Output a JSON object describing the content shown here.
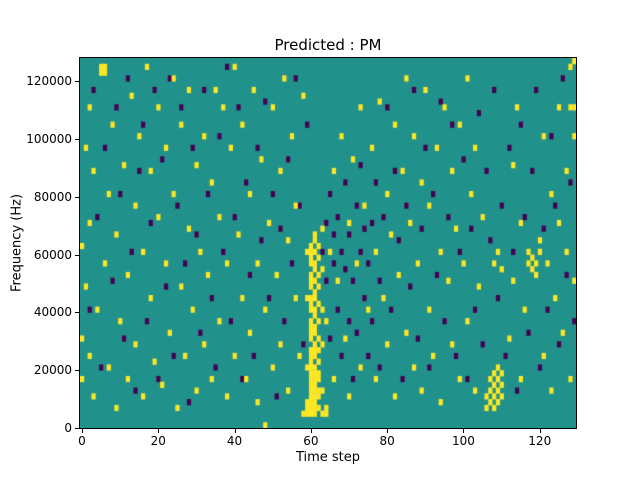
{
  "figure": {
    "title": "Predicted : PM"
  },
  "chart_data": {
    "type": "heatmap",
    "title": "Predicted : PM",
    "xlabel": "Time step",
    "ylabel": "Frequency (Hz)",
    "xlim": [
      0,
      130
    ],
    "ylim": [
      0,
      128000
    ],
    "n_time_steps": 130,
    "n_freq_bins": 64,
    "freq_bin_hz": 2000,
    "xticks": [
      0,
      20,
      40,
      60,
      80,
      100,
      120
    ],
    "xticklabels": [
      "0",
      "20",
      "40",
      "60",
      "80",
      "100",
      "120"
    ],
    "yticks": [
      0,
      20000,
      40000,
      60000,
      80000,
      100000,
      120000
    ],
    "yticklabels": [
      "0",
      "20000",
      "40000",
      "60000",
      "80000",
      "100000",
      "120000"
    ],
    "colormap": "viridis",
    "legend": "none",
    "grid": false,
    "colors": {
      "class_mid_teal": "#21918c",
      "class_yellow": "#fde725",
      "class_purple": "#440154",
      "axis": "#000000",
      "figure_bg": "#ffffff"
    },
    "cells_yellow": [
      [
        0,
        8
      ],
      [
        0,
        15
      ],
      [
        0,
        31
      ],
      [
        1,
        24
      ],
      [
        1,
        48
      ],
      [
        2,
        12
      ],
      [
        2,
        35
      ],
      [
        2,
        55
      ],
      [
        3,
        5
      ],
      [
        3,
        44
      ],
      [
        4,
        20
      ],
      [
        5,
        61
      ],
      [
        5,
        62
      ],
      [
        6,
        61
      ],
      [
        6,
        62
      ],
      [
        6,
        28
      ],
      [
        7,
        10
      ],
      [
        7,
        40
      ],
      [
        8,
        52
      ],
      [
        9,
        3
      ],
      [
        9,
        33
      ],
      [
        10,
        18
      ],
      [
        11,
        45
      ],
      [
        12,
        8
      ],
      [
        12,
        26
      ],
      [
        13,
        57
      ],
      [
        14,
        14
      ],
      [
        14,
        38
      ],
      [
        15,
        50
      ],
      [
        16,
        5
      ],
      [
        16,
        30
      ],
      [
        17,
        62
      ],
      [
        18,
        22
      ],
      [
        18,
        44
      ],
      [
        19,
        11
      ],
      [
        20,
        36
      ],
      [
        20,
        55
      ],
      [
        21,
        7
      ],
      [
        22,
        28
      ],
      [
        22,
        48
      ],
      [
        23,
        16
      ],
      [
        24,
        40
      ],
      [
        24,
        60
      ],
      [
        25,
        3
      ],
      [
        26,
        24
      ],
      [
        26,
        52
      ],
      [
        27,
        12
      ],
      [
        28,
        34
      ],
      [
        28,
        58
      ],
      [
        29,
        20
      ],
      [
        30,
        45
      ],
      [
        30,
        6
      ],
      [
        31,
        30
      ],
      [
        32,
        14
      ],
      [
        32,
        50
      ],
      [
        33,
        26
      ],
      [
        34,
        8
      ],
      [
        34,
        42
      ],
      [
        35,
        58
      ],
      [
        36,
        18
      ],
      [
        36,
        36
      ],
      [
        37,
        55
      ],
      [
        38,
        5
      ],
      [
        38,
        28
      ],
      [
        39,
        48
      ],
      [
        40,
        12
      ],
      [
        40,
        62
      ],
      [
        41,
        33
      ],
      [
        42,
        22
      ],
      [
        42,
        52
      ],
      [
        43,
        8
      ],
      [
        44,
        40
      ],
      [
        44,
        16
      ],
      [
        45,
        58
      ],
      [
        46,
        28
      ],
      [
        46,
        4
      ],
      [
        47,
        46
      ],
      [
        48,
        0
      ],
      [
        48,
        20
      ],
      [
        49,
        35
      ],
      [
        50,
        55
      ],
      [
        50,
        10
      ],
      [
        51,
        26
      ],
      [
        52,
        44
      ],
      [
        52,
        14
      ],
      [
        53,
        60
      ],
      [
        54,
        32
      ],
      [
        54,
        6
      ],
      [
        55,
        50
      ],
      [
        56,
        22
      ],
      [
        56,
        38
      ],
      [
        57,
        12
      ],
      [
        58,
        57
      ],
      [
        58,
        2
      ],
      [
        59,
        2
      ],
      [
        59,
        3
      ],
      [
        59,
        4
      ],
      [
        59,
        10
      ],
      [
        59,
        22
      ],
      [
        59,
        30
      ],
      [
        60,
        2
      ],
      [
        60,
        3
      ],
      [
        60,
        4
      ],
      [
        60,
        5
      ],
      [
        60,
        6
      ],
      [
        60,
        7
      ],
      [
        60,
        8
      ],
      [
        60,
        9
      ],
      [
        60,
        10
      ],
      [
        60,
        11
      ],
      [
        60,
        12
      ],
      [
        60,
        13
      ],
      [
        60,
        15
      ],
      [
        60,
        16
      ],
      [
        60,
        17
      ],
      [
        60,
        18
      ],
      [
        60,
        20
      ],
      [
        60,
        21
      ],
      [
        60,
        22
      ],
      [
        60,
        24
      ],
      [
        60,
        25
      ],
      [
        60,
        26
      ],
      [
        60,
        28
      ],
      [
        60,
        29
      ],
      [
        60,
        30
      ],
      [
        60,
        31
      ],
      [
        61,
        2
      ],
      [
        61,
        3
      ],
      [
        61,
        4
      ],
      [
        61,
        5
      ],
      [
        61,
        6
      ],
      [
        61,
        7
      ],
      [
        61,
        8
      ],
      [
        61,
        9
      ],
      [
        61,
        10
      ],
      [
        61,
        12
      ],
      [
        61,
        13
      ],
      [
        61,
        14
      ],
      [
        61,
        16
      ],
      [
        61,
        17
      ],
      [
        61,
        19
      ],
      [
        61,
        20
      ],
      [
        61,
        22
      ],
      [
        61,
        23
      ],
      [
        61,
        25
      ],
      [
        61,
        27
      ],
      [
        61,
        28
      ],
      [
        61,
        30
      ],
      [
        61,
        32
      ],
      [
        61,
        33
      ],
      [
        62,
        3
      ],
      [
        62,
        5
      ],
      [
        62,
        6
      ],
      [
        62,
        8
      ],
      [
        62,
        9
      ],
      [
        62,
        11
      ],
      [
        62,
        13
      ],
      [
        62,
        15
      ],
      [
        62,
        18
      ],
      [
        62,
        21
      ],
      [
        62,
        24
      ],
      [
        62,
        26
      ],
      [
        62,
        29
      ],
      [
        62,
        31
      ],
      [
        63,
        2
      ],
      [
        63,
        6
      ],
      [
        63,
        14
      ],
      [
        63,
        20
      ],
      [
        63,
        27
      ],
      [
        63,
        34
      ],
      [
        64,
        2
      ],
      [
        64,
        3
      ],
      [
        64,
        18
      ],
      [
        65,
        30
      ],
      [
        66,
        8
      ],
      [
        66,
        44
      ],
      [
        67,
        25
      ],
      [
        68,
        50
      ],
      [
        69,
        15
      ],
      [
        70,
        35
      ],
      [
        70,
        5
      ],
      [
        71,
        46
      ],
      [
        72,
        28
      ],
      [
        73,
        10
      ],
      [
        73,
        55
      ],
      [
        74,
        38
      ],
      [
        75,
        20
      ],
      [
        76,
        48
      ],
      [
        77,
        30
      ],
      [
        77,
        8
      ],
      [
        78,
        56
      ],
      [
        79,
        22
      ],
      [
        80,
        40
      ],
      [
        80,
        14
      ],
      [
        81,
        33
      ],
      [
        82,
        5
      ],
      [
        82,
        52
      ],
      [
        83,
        26
      ],
      [
        84,
        44
      ],
      [
        85,
        16
      ],
      [
        85,
        60
      ],
      [
        86,
        35
      ],
      [
        87,
        10
      ],
      [
        87,
        50
      ],
      [
        88,
        28
      ],
      [
        89,
        6
      ],
      [
        89,
        42
      ],
      [
        90,
        58
      ],
      [
        91,
        20
      ],
      [
        91,
        38
      ],
      [
        92,
        12
      ],
      [
        93,
        48
      ],
      [
        94,
        30
      ],
      [
        94,
        4
      ],
      [
        95,
        55
      ],
      [
        96,
        25
      ],
      [
        97,
        44
      ],
      [
        97,
        14
      ],
      [
        98,
        34
      ],
      [
        99,
        8
      ],
      [
        99,
        52
      ],
      [
        100,
        28
      ],
      [
        101,
        60
      ],
      [
        101,
        18
      ],
      [
        102,
        40
      ],
      [
        103,
        6
      ],
      [
        103,
        48
      ],
      [
        104,
        24
      ],
      [
        105,
        36
      ],
      [
        106,
        3
      ],
      [
        106,
        5
      ],
      [
        107,
        4
      ],
      [
        107,
        6
      ],
      [
        107,
        8
      ],
      [
        108,
        3
      ],
      [
        108,
        5
      ],
      [
        108,
        7
      ],
      [
        108,
        9
      ],
      [
        109,
        4
      ],
      [
        109,
        6
      ],
      [
        109,
        8
      ],
      [
        109,
        10
      ],
      [
        110,
        5
      ],
      [
        110,
        7
      ],
      [
        110,
        9
      ],
      [
        108,
        28
      ],
      [
        109,
        30
      ],
      [
        110,
        27
      ],
      [
        112,
        15
      ],
      [
        113,
        45
      ],
      [
        113,
        25
      ],
      [
        114,
        55
      ],
      [
        115,
        8
      ],
      [
        115,
        35
      ],
      [
        116,
        20
      ],
      [
        117,
        28
      ],
      [
        117,
        30
      ],
      [
        118,
        27
      ],
      [
        118,
        29
      ],
      [
        119,
        26
      ],
      [
        119,
        28
      ],
      [
        120,
        30
      ],
      [
        120,
        32
      ],
      [
        121,
        12
      ],
      [
        121,
        50
      ],
      [
        122,
        28
      ],
      [
        123,
        40
      ],
      [
        123,
        6
      ],
      [
        124,
        22
      ],
      [
        125,
        55
      ],
      [
        125,
        35
      ],
      [
        126,
        16
      ],
      [
        127,
        44
      ],
      [
        127,
        30
      ],
      [
        128,
        62
      ],
      [
        128,
        8
      ],
      [
        128,
        55
      ],
      [
        129,
        63
      ],
      [
        129,
        55
      ],
      [
        129,
        50
      ],
      [
        129,
        25
      ]
    ],
    "cells_purple": [
      [
        2,
        20
      ],
      [
        3,
        58
      ],
      [
        4,
        36
      ],
      [
        5,
        10
      ],
      [
        6,
        48
      ],
      [
        8,
        25
      ],
      [
        9,
        55
      ],
      [
        10,
        40
      ],
      [
        11,
        15
      ],
      [
        12,
        60
      ],
      [
        13,
        30
      ],
      [
        14,
        6
      ],
      [
        15,
        44
      ],
      [
        16,
        52
      ],
      [
        17,
        18
      ],
      [
        18,
        35
      ],
      [
        19,
        58
      ],
      [
        20,
        8
      ],
      [
        21,
        46
      ],
      [
        22,
        24
      ],
      [
        23,
        60
      ],
      [
        24,
        12
      ],
      [
        25,
        38
      ],
      [
        26,
        55
      ],
      [
        27,
        28
      ],
      [
        28,
        4
      ],
      [
        29,
        48
      ],
      [
        30,
        33
      ],
      [
        31,
        16
      ],
      [
        32,
        58
      ],
      [
        33,
        40
      ],
      [
        34,
        22
      ],
      [
        35,
        10
      ],
      [
        36,
        50
      ],
      [
        37,
        30
      ],
      [
        38,
        62
      ],
      [
        39,
        18
      ],
      [
        40,
        36
      ],
      [
        41,
        55
      ],
      [
        42,
        8
      ],
      [
        43,
        42
      ],
      [
        44,
        26
      ],
      [
        45,
        12
      ],
      [
        46,
        48
      ],
      [
        47,
        32
      ],
      [
        48,
        56
      ],
      [
        49,
        22
      ],
      [
        50,
        40
      ],
      [
        51,
        5
      ],
      [
        52,
        34
      ],
      [
        53,
        18
      ],
      [
        54,
        46
      ],
      [
        55,
        28
      ],
      [
        56,
        60
      ],
      [
        57,
        38
      ],
      [
        58,
        14
      ],
      [
        59,
        52
      ],
      [
        63,
        30
      ],
      [
        64,
        35
      ],
      [
        64,
        25
      ],
      [
        65,
        15
      ],
      [
        65,
        40
      ],
      [
        66,
        28
      ],
      [
        66,
        33
      ],
      [
        67,
        20
      ],
      [
        67,
        36
      ],
      [
        68,
        30
      ],
      [
        68,
        12
      ],
      [
        69,
        42
      ],
      [
        69,
        27
      ],
      [
        70,
        18
      ],
      [
        70,
        33
      ],
      [
        71,
        25
      ],
      [
        71,
        8
      ],
      [
        72,
        38
      ],
      [
        72,
        16
      ],
      [
        73,
        30
      ],
      [
        73,
        45
      ],
      [
        74,
        22
      ],
      [
        74,
        34
      ],
      [
        75,
        12
      ],
      [
        75,
        28
      ],
      [
        76,
        35
      ],
      [
        76,
        18
      ],
      [
        77,
        42
      ],
      [
        78,
        25
      ],
      [
        78,
        10
      ],
      [
        79,
        36
      ],
      [
        80,
        55
      ],
      [
        81,
        20
      ],
      [
        82,
        44
      ],
      [
        83,
        32
      ],
      [
        84,
        8
      ],
      [
        85,
        38
      ],
      [
        86,
        24
      ],
      [
        87,
        58
      ],
      [
        88,
        15
      ],
      [
        89,
        34
      ],
      [
        90,
        48
      ],
      [
        91,
        10
      ],
      [
        92,
        40
      ],
      [
        93,
        26
      ],
      [
        94,
        56
      ],
      [
        95,
        18
      ],
      [
        96,
        36
      ],
      [
        97,
        52
      ],
      [
        98,
        12
      ],
      [
        99,
        30
      ],
      [
        100,
        46
      ],
      [
        101,
        8
      ],
      [
        102,
        34
      ],
      [
        103,
        20
      ],
      [
        104,
        54
      ],
      [
        105,
        14
      ],
      [
        106,
        44
      ],
      [
        107,
        32
      ],
      [
        108,
        58
      ],
      [
        109,
        22
      ],
      [
        110,
        38
      ],
      [
        111,
        12
      ],
      [
        112,
        48
      ],
      [
        113,
        30
      ],
      [
        114,
        6
      ],
      [
        115,
        52
      ],
      [
        116,
        36
      ],
      [
        117,
        16
      ],
      [
        118,
        44
      ],
      [
        119,
        58
      ],
      [
        120,
        10
      ],
      [
        121,
        34
      ],
      [
        122,
        20
      ],
      [
        123,
        50
      ],
      [
        124,
        38
      ],
      [
        125,
        14
      ],
      [
        126,
        60
      ],
      [
        127,
        26
      ],
      [
        128,
        42
      ],
      [
        129,
        18
      ]
    ]
  }
}
